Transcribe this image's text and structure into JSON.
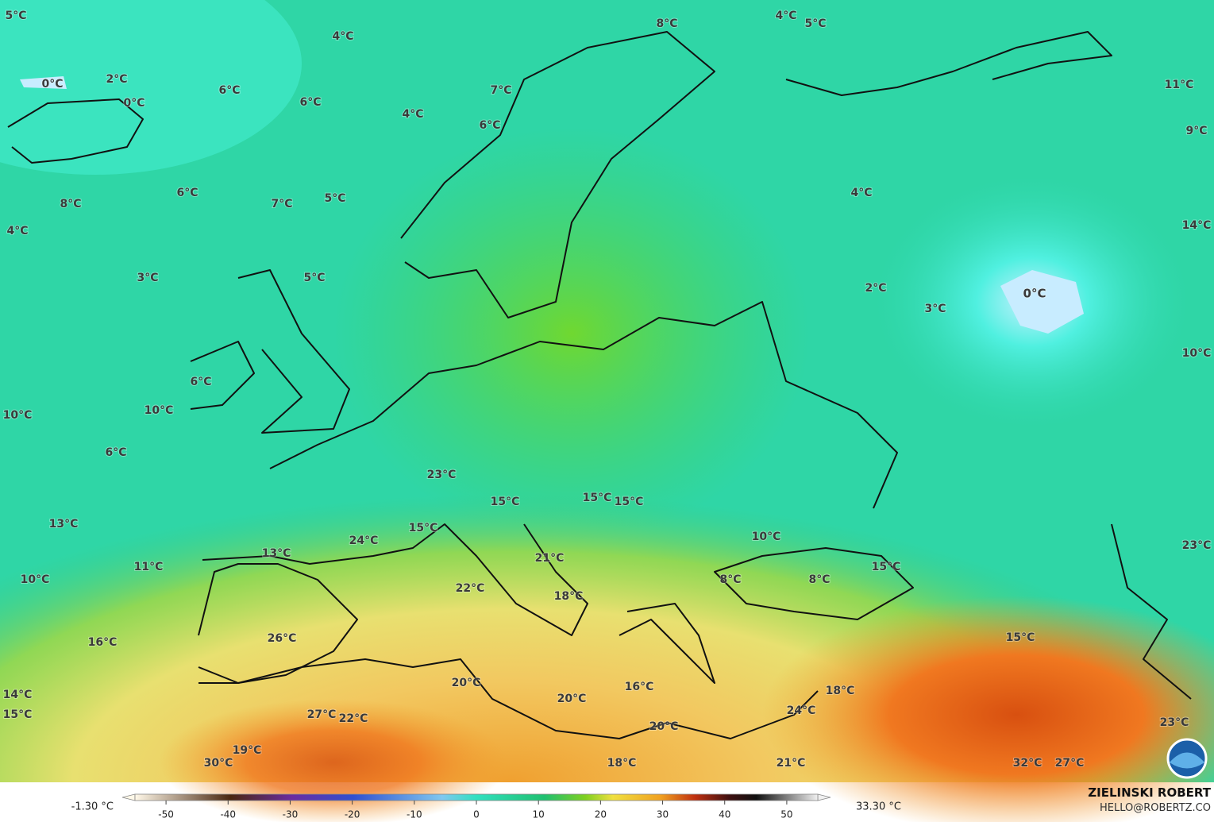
{
  "map": {
    "labels": [
      "5°C",
      "4°C",
      "8°C",
      "4°C",
      "5°C",
      "0°C",
      "2°C",
      "0°C",
      "6°C",
      "6°C",
      "7°C",
      "4°C",
      "6°C",
      "11°C",
      "9°C",
      "6°C",
      "8°C",
      "7°C",
      "5°C",
      "4°C",
      "4°C",
      "14°C",
      "3°C",
      "5°C",
      "2°C",
      "0°C",
      "3°C",
      "10°C",
      "6°C",
      "10°C",
      "10°C",
      "6°C",
      "23°C",
      "15°C",
      "15°C",
      "15°C",
      "13°C",
      "15°C",
      "24°C",
      "10°C",
      "23°C",
      "13°C",
      "11°C",
      "21°C",
      "15°C",
      "10°C",
      "8°C",
      "8°C",
      "22°C",
      "18°C",
      "16°C",
      "26°C",
      "15°C",
      "20°C",
      "16°C",
      "18°C",
      "20°C",
      "14°C",
      "24°C",
      "15°C",
      "27°C",
      "22°C",
      "23°C",
      "20°C",
      "19°C",
      "30°C",
      "18°C",
      "21°C",
      "32°C",
      "27°C"
    ]
  },
  "colorbar": {
    "min_label": "-1.30 °C",
    "max_label": "33.30 °C",
    "range": [
      -55,
      55
    ],
    "ticks": [
      -50,
      -40,
      -30,
      -20,
      -10,
      0,
      10,
      20,
      30,
      40,
      50
    ]
  },
  "credit": {
    "name": "ZIELINSKI ROBERT",
    "email": "HELLO@ROBERTZ.CO"
  }
}
